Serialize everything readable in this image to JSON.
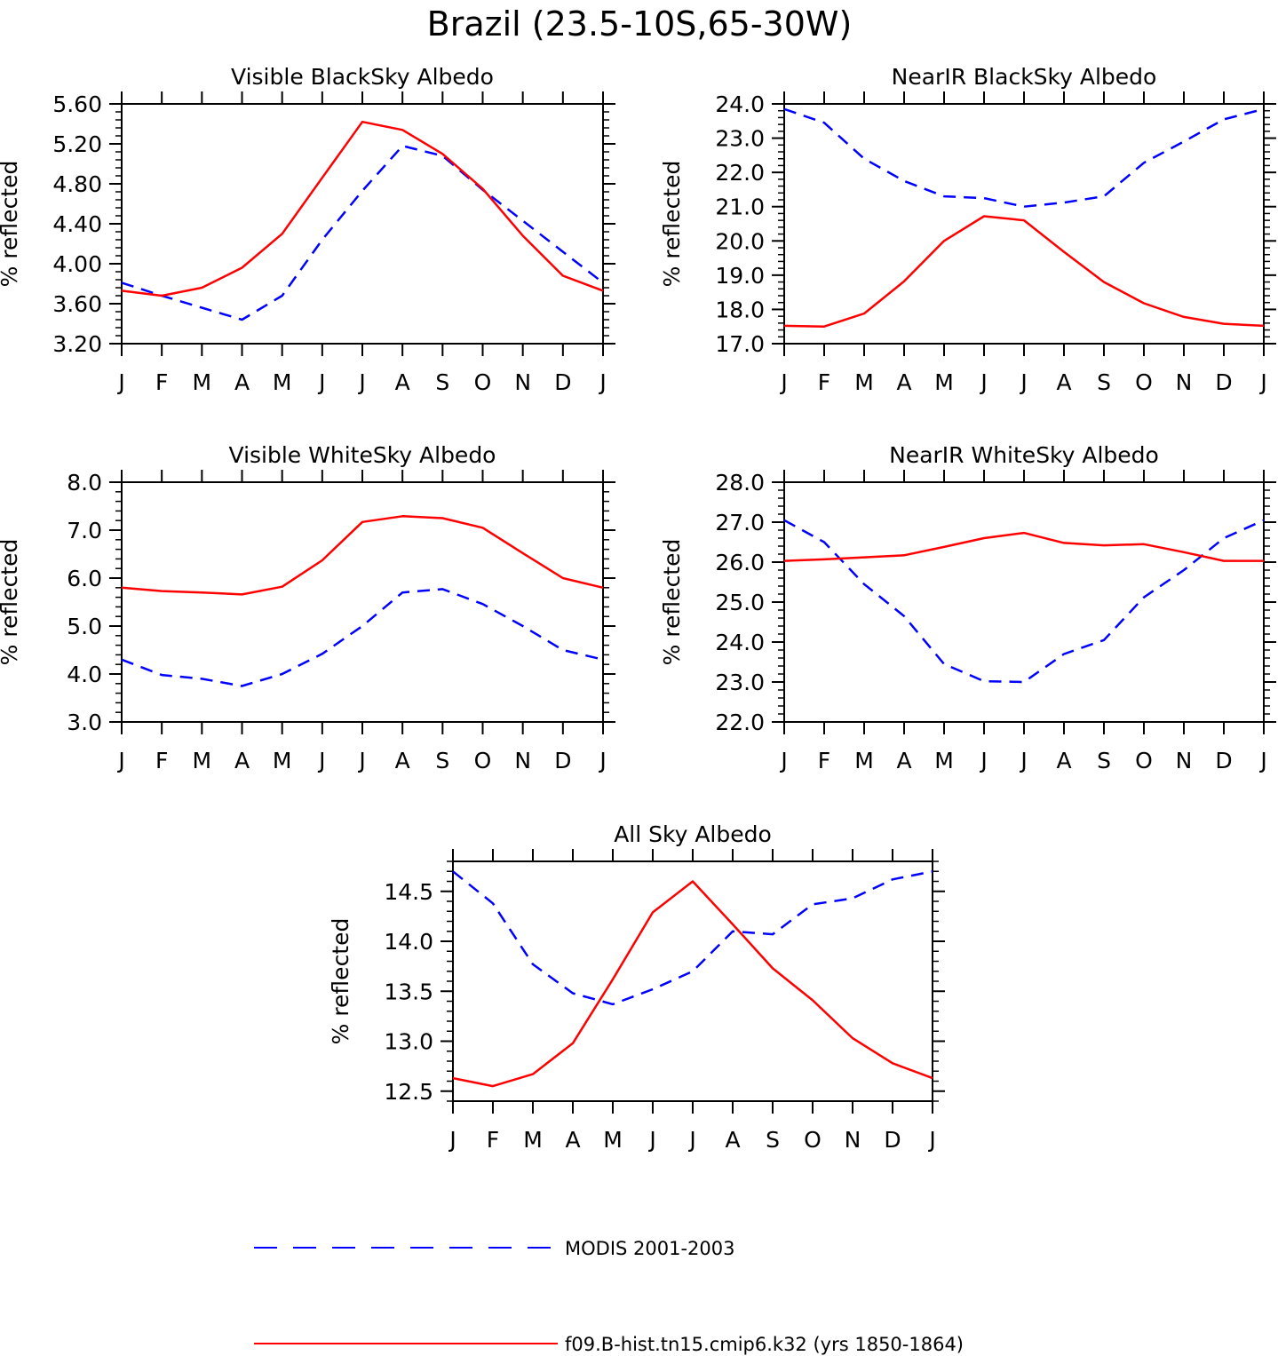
{
  "title": "Brazil (23.5-10S,65-30W)",
  "colors": {
    "series0": "#0000ff",
    "series1": "#ff0000",
    "axis": "#000000"
  },
  "legend": [
    {
      "label": "MODIS 2001-2003",
      "color": "#0000ff",
      "dash": "dashed"
    },
    {
      "label": "f09.B-hist.tn15.cmip6.k32 (yrs 1850-1864)",
      "color": "#ff0000",
      "dash": "solid"
    }
  ],
  "chart_data": [
    {
      "type": "line",
      "title": "Visible BlackSky Albedo",
      "ylabel": "% reflected",
      "categories": [
        "J",
        "F",
        "M",
        "A",
        "M",
        "J",
        "J",
        "A",
        "S",
        "O",
        "N",
        "D",
        "J"
      ],
      "ylim": [
        3.2,
        5.6
      ],
      "yticks": [
        "5.60",
        "5.20",
        "4.80",
        "4.40",
        "4.00",
        "3.60",
        "3.20"
      ],
      "series": [
        {
          "name": "MODIS 2001-2003",
          "values": [
            3.81,
            3.68,
            3.56,
            3.44,
            3.68,
            4.24,
            4.73,
            5.18,
            5.08,
            4.74,
            4.43,
            4.12,
            3.81
          ]
        },
        {
          "name": "f09.B-hist.tn15.cmip6.k32 (yrs 1850-1864)",
          "values": [
            3.73,
            3.68,
            3.76,
            3.96,
            4.3,
            4.86,
            5.42,
            5.34,
            5.1,
            4.75,
            4.28,
            3.88,
            3.73
          ]
        }
      ]
    },
    {
      "type": "line",
      "title": "NearIR BlackSky Albedo",
      "ylabel": "% reflected",
      "categories": [
        "J",
        "F",
        "M",
        "A",
        "M",
        "J",
        "J",
        "A",
        "S",
        "O",
        "N",
        "D",
        "J"
      ],
      "ylim": [
        17.0,
        24.0
      ],
      "yticks": [
        "24.0",
        "23.0",
        "22.0",
        "21.0",
        "20.0",
        "19.0",
        "18.0",
        "17.0"
      ],
      "series": [
        {
          "name": "MODIS 2001-2003",
          "values": [
            23.85,
            23.45,
            22.4,
            21.75,
            21.3,
            21.25,
            21.0,
            21.12,
            21.3,
            22.28,
            22.9,
            23.55,
            23.85
          ]
        },
        {
          "name": "f09.B-hist.tn15.cmip6.k32 (yrs 1850-1864)",
          "values": [
            17.52,
            17.5,
            17.88,
            18.82,
            20.0,
            20.72,
            20.6,
            19.68,
            18.8,
            18.18,
            17.78,
            17.58,
            17.52
          ]
        }
      ]
    },
    {
      "type": "line",
      "title": "Visible WhiteSky Albedo",
      "ylabel": "% reflected",
      "categories": [
        "J",
        "F",
        "M",
        "A",
        "M",
        "J",
        "J",
        "A",
        "S",
        "O",
        "N",
        "D",
        "J"
      ],
      "ylim": [
        3.0,
        8.0
      ],
      "yticks": [
        "8.0",
        "7.0",
        "6.0",
        "5.0",
        "4.0",
        "3.0"
      ],
      "series": [
        {
          "name": "MODIS 2001-2003",
          "values": [
            4.3,
            3.98,
            3.9,
            3.75,
            4.0,
            4.42,
            5.0,
            5.7,
            5.77,
            5.46,
            5.0,
            4.5,
            4.3
          ]
        },
        {
          "name": "f09.B-hist.tn15.cmip6.k32 (yrs 1850-1864)",
          "values": [
            5.8,
            5.73,
            5.7,
            5.66,
            5.82,
            6.37,
            7.17,
            7.29,
            7.25,
            7.05,
            6.52,
            6.0,
            5.8
          ]
        }
      ]
    },
    {
      "type": "line",
      "title": "NearIR WhiteSky Albedo",
      "ylabel": "% reflected",
      "categories": [
        "J",
        "F",
        "M",
        "A",
        "M",
        "J",
        "J",
        "A",
        "S",
        "O",
        "N",
        "D",
        "J"
      ],
      "ylim": [
        22.0,
        28.0
      ],
      "yticks": [
        "28.0",
        "27.0",
        "26.0",
        "25.0",
        "24.0",
        "23.0",
        "22.0"
      ],
      "series": [
        {
          "name": "MODIS 2001-2003",
          "values": [
            27.05,
            26.5,
            25.45,
            24.65,
            23.45,
            23.02,
            23.0,
            23.7,
            24.05,
            25.12,
            25.8,
            26.6,
            27.05
          ]
        },
        {
          "name": "f09.B-hist.tn15.cmip6.k32 (yrs 1850-1864)",
          "values": [
            26.03,
            26.07,
            26.12,
            26.17,
            26.38,
            26.6,
            26.73,
            26.48,
            26.42,
            26.45,
            26.25,
            26.03,
            26.03
          ]
        }
      ]
    },
    {
      "type": "line",
      "title": "All Sky Albedo",
      "ylabel": "% reflected",
      "categories": [
        "J",
        "F",
        "M",
        "A",
        "M",
        "J",
        "J",
        "A",
        "S",
        "O",
        "N",
        "D",
        "J"
      ],
      "ylim": [
        12.4,
        14.8
      ],
      "yticks": [
        "14.5",
        "14.0",
        "13.5",
        "13.0",
        "12.5"
      ],
      "series": [
        {
          "name": "MODIS 2001-2003",
          "values": [
            14.7,
            14.38,
            13.77,
            13.48,
            13.37,
            13.52,
            13.7,
            14.1,
            14.07,
            14.37,
            14.43,
            14.62,
            14.7
          ]
        },
        {
          "name": "f09.B-hist.tn15.cmip6.k32 (yrs 1850-1864)",
          "values": [
            12.63,
            12.55,
            12.67,
            12.98,
            13.62,
            14.29,
            14.6,
            14.17,
            13.73,
            13.41,
            13.03,
            12.78,
            12.63
          ]
        }
      ]
    }
  ]
}
